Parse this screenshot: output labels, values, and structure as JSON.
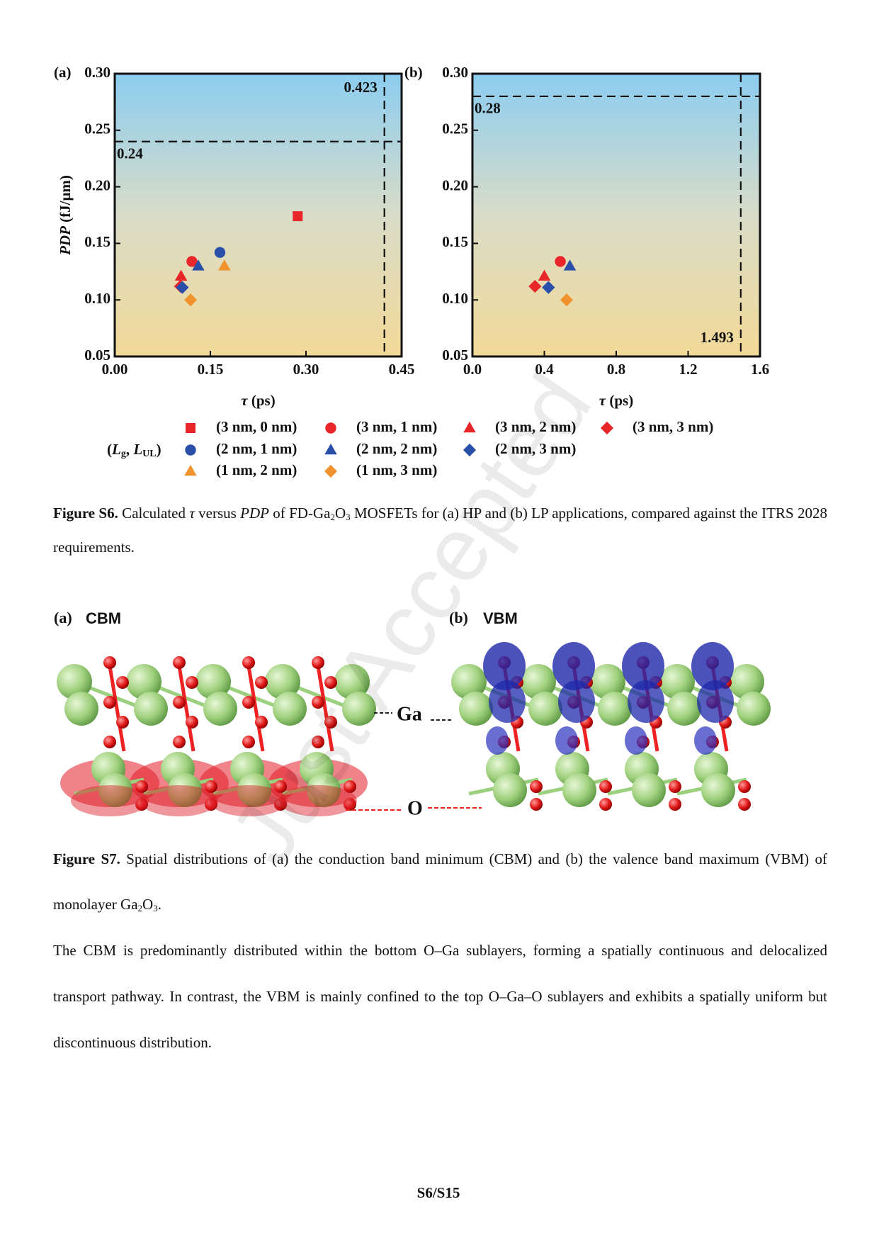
{
  "chart_data": [
    {
      "type": "scatter",
      "panel_label": "(a)",
      "x_label": [
        "τ",
        " (ps)"
      ],
      "y_label": [
        "PDP",
        " (fJ/μm)"
      ],
      "xlim": [
        0,
        0.45
      ],
      "xticks": [
        {
          "value": 0,
          "label": "0.00"
        },
        0.15,
        {
          "value": 0.3,
          "label": "0.30"
        },
        0.45
      ],
      "ylim": [
        0.05,
        0.3
      ],
      "yticks": [
        0.05,
        {
          "value": 0.1,
          "label": "0.10"
        },
        0.15,
        {
          "value": 0.2,
          "label": "0.20"
        },
        0.25,
        {
          "value": 0.3,
          "label": "0.30"
        }
      ],
      "hlines": [
        {
          "value": 0.24,
          "label": "0.24"
        }
      ],
      "vlines": [
        {
          "value": 0.423,
          "label": "0.423"
        }
      ],
      "legend_title": [
        "(",
        "L",
        "g",
        ", ",
        "L",
        "UL",
        ")"
      ],
      "series": [
        {
          "name": "(3 nm, 0 nm)",
          "color": "#e8262a",
          "marker": "square",
          "x": [
            0.287
          ],
          "values": [
            0.174
          ]
        },
        {
          "name": "(3 nm, 1 nm)",
          "color": "#e8262a",
          "marker": "circle",
          "x": [
            0.121
          ],
          "values": [
            0.134
          ]
        },
        {
          "name": "(3 nm, 2 nm)",
          "color": "#e8262a",
          "marker": "triangle",
          "x": [
            0.104
          ],
          "values": [
            0.121
          ]
        },
        {
          "name": "(3 nm, 3 nm)",
          "color": "#e8262a",
          "marker": "diamond",
          "x": [
            0.103
          ],
          "values": [
            0.112
          ]
        },
        {
          "name": "(2 nm, 1 nm)",
          "color": "#2a4fa8",
          "marker": "circle",
          "x": [
            0.165
          ],
          "values": [
            0.142
          ]
        },
        {
          "name": "(2 nm, 2 nm)",
          "color": "#2a4fa8",
          "marker": "triangle",
          "x": [
            0.131
          ],
          "values": [
            0.13
          ]
        },
        {
          "name": "(2 nm, 3 nm)",
          "color": "#2a4fa8",
          "marker": "diamond",
          "x": [
            0.106
          ],
          "values": [
            0.111
          ]
        },
        {
          "name": "(1 nm, 2 nm)",
          "color": "#f0922e",
          "marker": "triangle",
          "x": [
            0.172
          ],
          "values": [
            0.13
          ]
        },
        {
          "name": "(1 nm, 3 nm)",
          "color": "#f0922e",
          "marker": "diamond",
          "x": [
            0.119
          ],
          "values": [
            0.1
          ]
        }
      ]
    },
    {
      "type": "scatter",
      "panel_label": "(b)",
      "x_label": [
        "τ",
        " (ps)"
      ],
      "xlim": [
        0,
        1.6
      ],
      "xticks": [
        {
          "value": 0,
          "label": "0.0"
        },
        0.4,
        0.8,
        1.2,
        1.6
      ],
      "ylim": [
        0.05,
        0.3
      ],
      "yticks": [
        0.05,
        {
          "value": 0.1,
          "label": "0.10"
        },
        0.15,
        {
          "value": 0.2,
          "label": "0.20"
        },
        0.25,
        {
          "value": 0.3,
          "label": "0.30"
        }
      ],
      "hlines": [
        {
          "value": 0.28,
          "label": "0.28"
        }
      ],
      "vlines": [
        {
          "value": 1.493,
          "label": "1.493"
        }
      ],
      "series": [
        {
          "color": "#e8262a",
          "marker": "circle",
          "x": [
            0.489
          ],
          "values": [
            0.134
          ]
        },
        {
          "color": "#e8262a",
          "marker": "triangle",
          "x": [
            0.4
          ],
          "values": [
            0.121
          ]
        },
        {
          "color": "#e8262a",
          "marker": "diamond",
          "x": [
            0.348
          ],
          "values": [
            0.112
          ]
        },
        {
          "color": "#2a4fa8",
          "marker": "triangle",
          "x": [
            0.542
          ],
          "values": [
            0.13
          ]
        },
        {
          "color": "#2a4fa8",
          "marker": "diamond",
          "x": [
            0.423
          ],
          "values": [
            0.111
          ]
        },
        {
          "color": "#f0922e",
          "marker": "diamond",
          "x": [
            0.524
          ],
          "values": [
            0.1
          ]
        }
      ]
    }
  ],
  "caption_s6": {
    "label": "Figure S6.",
    "parts": [
      " Calculated ",
      "τ",
      " versus ",
      "PDP",
      " of FD-Ga",
      "2",
      "O",
      "3",
      " MOSFETs for (a) HP and (b) LP applications, compared against the ITRS 2028 requirements."
    ]
  },
  "figure_s7": {
    "panel_a": "(a)",
    "title_a": "CBM",
    "panel_b": "(b)",
    "title_b": "VBM",
    "label_ga": "Ga",
    "label_o": "O"
  },
  "caption_s7": {
    "label": "Figure S7.",
    "parts": [
      " Spatial distributions of (a) the conduction band minimum (CBM) and (b) the valence band maximum (VBM) of monolayer Ga",
      "2",
      "O",
      "3",
      "."
    ]
  },
  "paragraph": "The CBM is predominantly distributed within the bottom O–Ga sublayers, forming a spatially continuous and delocalized transport pathway. In contrast, the VBM is mainly confined to the top O–Ga–O sublayers and exhibits a spatially uniform but discontinuous distribution.",
  "page_number": "S6/S15",
  "watermark": "Just Accepted"
}
